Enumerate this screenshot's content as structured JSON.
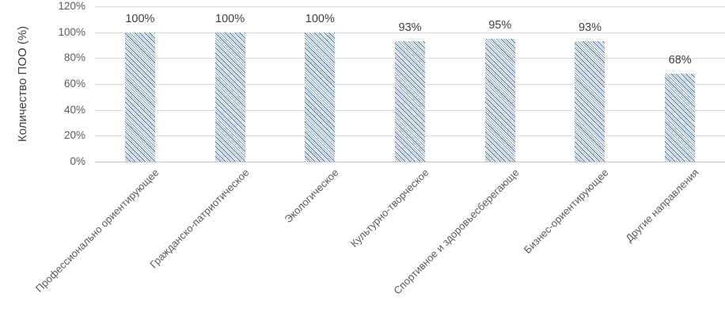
{
  "chart_data": {
    "type": "bar",
    "title": "",
    "xlabel": "",
    "ylabel": "Количество ПОО (%)",
    "ylim": [
      0,
      120
    ],
    "grid": true,
    "legend": "none",
    "yticks": [
      "120%",
      "100%",
      "80%",
      "60%",
      "40%",
      "20%",
      "0%"
    ],
    "categories": [
      "Профессионально ориентирующее",
      "Гражданско-патриотическое",
      "Экологическое",
      "Культурно-творческое",
      "Спортивное и здоровьесберегающе",
      "Бизнес-ориентирующее",
      "Другие направления"
    ],
    "values": [
      100,
      100,
      100,
      93,
      95,
      93,
      68
    ],
    "value_labels": [
      "100%",
      "100%",
      "100%",
      "93%",
      "95%",
      "93%",
      "68%"
    ],
    "bar_style": {
      "hatch": "diagonal-down",
      "hatch_dark": "#4e7296",
      "hatch_light": "#9db9cf",
      "fill_background": "#ffffff"
    },
    "colors": {
      "gridline": "#d9d9d9",
      "axis_line": "#c6c6c6",
      "tick_text": "#595959",
      "value_text": "#404040"
    }
  }
}
